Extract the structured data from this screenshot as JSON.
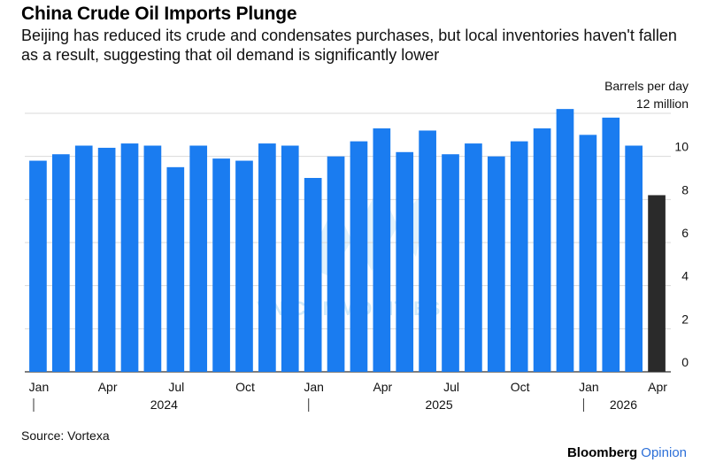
{
  "header": {
    "title": "China Crude Oil Imports Plunge",
    "subtitle": "Beijing has reduced its crude and condensates purchases, but local inventories haven't fallen as a result, suggesting that oil demand is significantly lower"
  },
  "chart_data": {
    "type": "bar",
    "unit_label": "Barrels per day",
    "top_tick_label": "12 million",
    "ylim": [
      0,
      12
    ],
    "yticks": [
      0,
      2,
      4,
      6,
      8,
      10,
      12
    ],
    "ytick_labels": [
      "0",
      "2",
      "4",
      "6",
      "8",
      "10",
      "12 million"
    ],
    "categories": [
      "2024-01",
      "2024-02",
      "2024-03",
      "2024-04",
      "2024-05",
      "2024-06",
      "2024-07",
      "2024-08",
      "2024-09",
      "2024-10",
      "2024-11",
      "2024-12",
      "2025-01",
      "2025-02",
      "2025-03",
      "2025-04",
      "2025-05",
      "2025-06",
      "2025-07",
      "2025-08",
      "2025-09",
      "2025-10",
      "2025-11",
      "2025-12",
      "2026-01",
      "2026-02",
      "2026-03",
      "2026-04"
    ],
    "values": [
      9.8,
      10.1,
      10.5,
      10.4,
      10.6,
      10.5,
      9.5,
      10.5,
      9.9,
      9.8,
      10.6,
      10.5,
      9.0,
      10.0,
      10.7,
      11.3,
      10.2,
      11.2,
      10.1,
      10.6,
      10.0,
      10.7,
      11.3,
      12.2,
      11.0,
      11.8,
      10.5,
      8.2
    ],
    "bar_colors": [
      "#1a7cf0",
      "#1a7cf0",
      "#1a7cf0",
      "#1a7cf0",
      "#1a7cf0",
      "#1a7cf0",
      "#1a7cf0",
      "#1a7cf0",
      "#1a7cf0",
      "#1a7cf0",
      "#1a7cf0",
      "#1a7cf0",
      "#1a7cf0",
      "#1a7cf0",
      "#1a7cf0",
      "#1a7cf0",
      "#1a7cf0",
      "#1a7cf0",
      "#1a7cf0",
      "#1a7cf0",
      "#1a7cf0",
      "#1a7cf0",
      "#1a7cf0",
      "#1a7cf0",
      "#1a7cf0",
      "#1a7cf0",
      "#1a7cf0",
      "#2a2a2a"
    ],
    "xticks": [
      {
        "index": 0,
        "label": "Jan"
      },
      {
        "index": 3,
        "label": "Apr"
      },
      {
        "index": 6,
        "label": "Jul"
      },
      {
        "index": 9,
        "label": "Oct"
      },
      {
        "index": 12,
        "label": "Jan"
      },
      {
        "index": 15,
        "label": "Apr"
      },
      {
        "index": 18,
        "label": "Jul"
      },
      {
        "index": 21,
        "label": "Oct"
      },
      {
        "index": 24,
        "label": "Jan"
      },
      {
        "index": 27,
        "label": "Apr"
      }
    ],
    "years": [
      {
        "label": "2024",
        "start_index": 0
      },
      {
        "label": "2025",
        "start_index": 12
      },
      {
        "label": "2026",
        "start_index": 24
      }
    ],
    "grid": true,
    "legend": "none"
  },
  "footer": {
    "source": "Source: Vortexa",
    "brand": "Bloomberg",
    "brand_suffix": "Opinion"
  },
  "watermark": "VN COMMODITIES"
}
